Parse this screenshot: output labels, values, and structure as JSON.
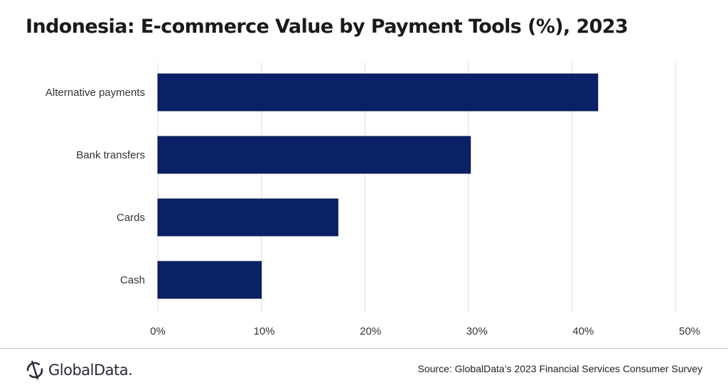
{
  "chart_data": {
    "type": "bar",
    "orientation": "horizontal",
    "title": "Indonesia: E-commerce Value by Payment Tools (%), 2023",
    "categories": [
      "Alternative payments",
      "Bank transfers",
      "Cards",
      "Cash"
    ],
    "values": [
      42.5,
      30.2,
      17.4,
      10.0
    ],
    "xlim": [
      0,
      50
    ],
    "xticks": [
      "0%",
      "10%",
      "20%",
      "30%",
      "40%",
      "50%"
    ],
    "xlabel": "",
    "ylabel": "",
    "grid": "vertical",
    "bar_color": "#0a2167"
  },
  "footer": {
    "logo": "GlobalData.",
    "source": "Source: GlobalData’s 2023 Financial Services Consumer Survey"
  }
}
